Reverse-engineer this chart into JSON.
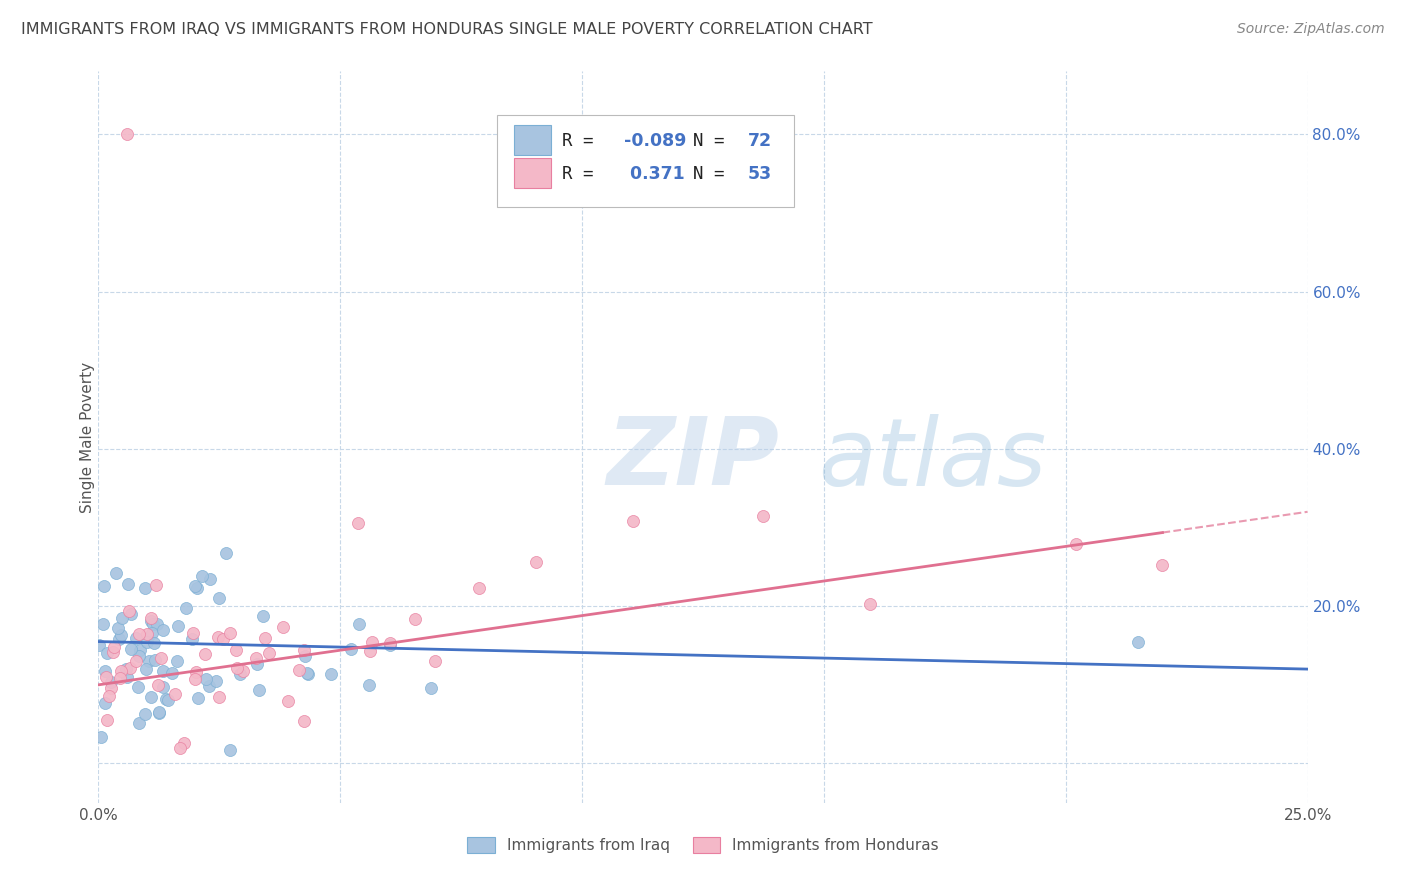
{
  "title": "IMMIGRANTS FROM IRAQ VS IMMIGRANTS FROM HONDURAS SINGLE MALE POVERTY CORRELATION CHART",
  "source": "Source: ZipAtlas.com",
  "ylabel": "Single Male Poverty",
  "x_min": 0.0,
  "x_max": 0.25,
  "y_min": -0.05,
  "y_max": 0.88,
  "iraq_color": "#a8c4e0",
  "iraq_color_dark": "#7bafd4",
  "honduras_color": "#f4b8c8",
  "honduras_color_dark": "#e87fa0",
  "trend_iraq_color": "#4472c4",
  "trend_honduras_color": "#e07090",
  "watermark_zip": "ZIP",
  "watermark_atlas": "atlas",
  "iraq_R": -0.089,
  "iraq_N": 72,
  "honduras_R": 0.371,
  "honduras_N": 53,
  "background_color": "#ffffff",
  "grid_color": "#c8d8e8",
  "title_color": "#444444",
  "axis_label_color": "#555555",
  "right_tick_color": "#4472c4",
  "legend_text_color_dark": "#333333",
  "legend_text_color_blue": "#4472c4"
}
